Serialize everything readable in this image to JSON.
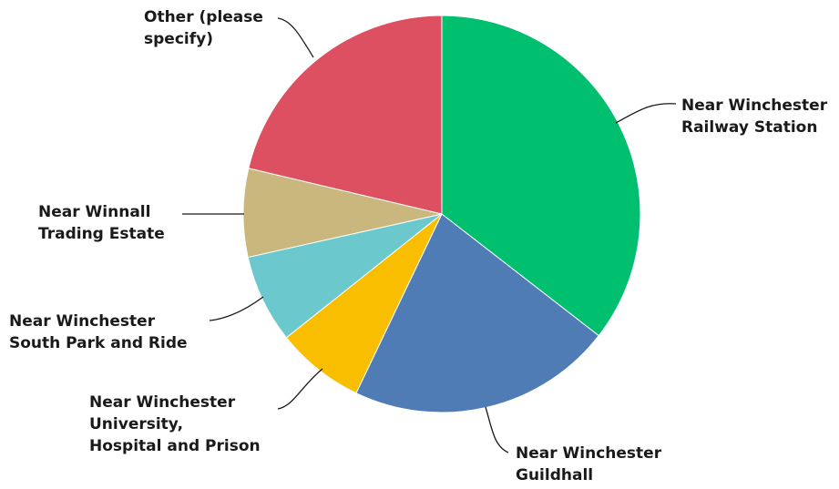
{
  "chart_data": {
    "type": "pie",
    "title": "",
    "slices": [
      {
        "label_lines": [
          "Near Winchester",
          "Railway Station"
        ],
        "value": 35.5,
        "color": "#00BF6F"
      },
      {
        "label_lines": [
          "Near Winchester",
          "Guildhall"
        ],
        "value": 21.6,
        "color": "#507CB6"
      },
      {
        "label_lines": [
          "Near Winchester",
          "University,",
          "Hospital and Prison"
        ],
        "value": 7.2,
        "color": "#F9BE00"
      },
      {
        "label_lines": [
          "Near Winchester",
          "South Park and Ride"
        ],
        "value": 7.2,
        "color": "#6BC8CD"
      },
      {
        "label_lines": [
          "Near Winnall",
          "Trading Estate"
        ],
        "value": 7.2,
        "color": "#C9B77D"
      },
      {
        "label_lines": [
          "Other (please",
          "specify)"
        ],
        "value": 21.3,
        "color": "#DC5061"
      }
    ]
  }
}
